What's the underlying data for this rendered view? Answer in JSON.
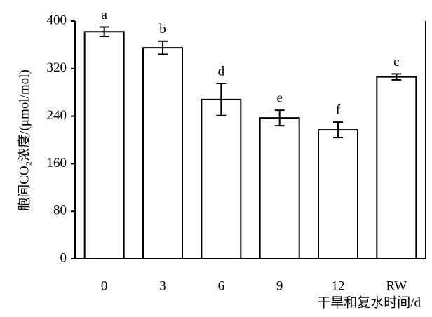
{
  "chart_data": {
    "type": "bar",
    "y_label": "胞间CO₂浓度/(μmol/mol)",
    "x_label": "干旱和复水时间/d",
    "categories": [
      "0",
      "3",
      "6",
      "9",
      "12",
      "RW"
    ],
    "values": [
      382,
      355,
      268,
      237,
      217,
      306
    ],
    "errors": [
      8,
      11,
      27,
      13,
      13,
      5
    ],
    "letters": [
      "a",
      "b",
      "d",
      "e",
      "f",
      "c"
    ],
    "color": "#ffffff",
    "ylim": [
      0,
      400
    ],
    "yticks": [
      0,
      80,
      160,
      240,
      320,
      400
    ]
  }
}
